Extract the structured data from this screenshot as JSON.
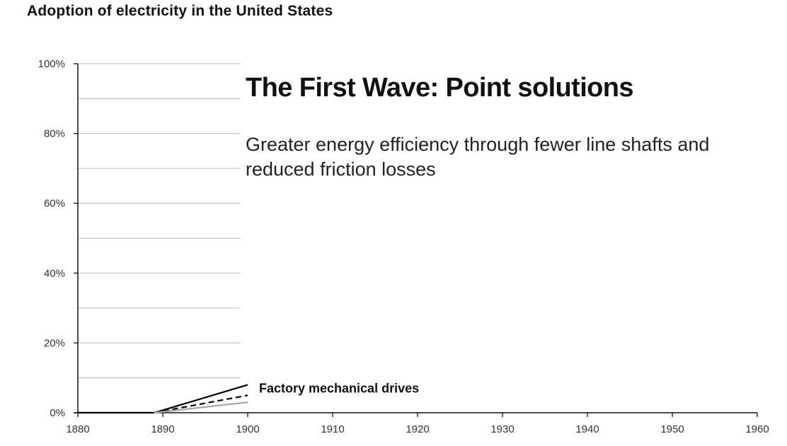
{
  "chart_data": {
    "type": "line",
    "title": "Adoption of electricity in the United States",
    "xlabel": "",
    "ylabel": "",
    "xlim": [
      1880,
      1960
    ],
    "ylim": [
      0,
      100
    ],
    "x_ticks": [
      "1880",
      "1890",
      "1900",
      "1910",
      "1920",
      "1930",
      "1940",
      "1950",
      "1960"
    ],
    "y_ticks": [
      "0%",
      "20%",
      "40%",
      "60%",
      "80%",
      "100%"
    ],
    "y_gridlines": [
      10,
      20,
      30,
      40,
      50,
      60,
      70,
      80,
      90,
      100
    ],
    "grid": "horizontal, through 1900",
    "series": [
      {
        "color": "#000000",
        "dash": "solid",
        "x": [
          1880,
          1889,
          1900
        ],
        "values": [
          0,
          0,
          8
        ]
      },
      {
        "color": "#000000",
        "dash": "dashed",
        "x": [
          1889,
          1900
        ],
        "values": [
          0,
          5
        ]
      },
      {
        "color": "#a6a6a6",
        "dash": "solid",
        "x": [
          1889,
          1900
        ],
        "values": [
          0,
          3
        ]
      }
    ],
    "annotations": [
      {
        "text": "Factory mechanical drives",
        "x": 1900,
        "y": 6
      }
    ]
  },
  "overlay": {
    "heading": "The First Wave: Point solutions",
    "subtext": "Greater energy efficiency through fewer line shafts and reduced friction losses"
  }
}
